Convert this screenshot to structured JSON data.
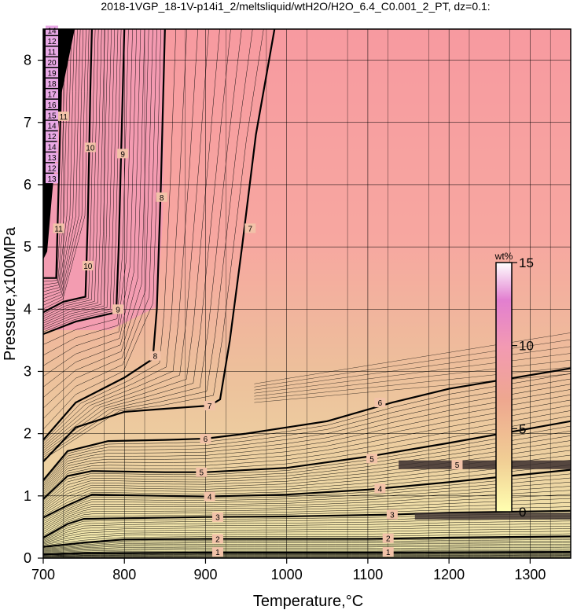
{
  "chart_data": {
    "type": "heatmap",
    "title": "2018-1VGP_18-1V-p14i1_2/meltsliquid/wtH2O/H2O_6.4_C0.001_2_PT, dz=0.1:",
    "xlabel": "Temperature,°C",
    "ylabel": "Pressure,x100MPa",
    "xlim": [
      700,
      1350
    ],
    "ylim": [
      0,
      8.5
    ],
    "xticks": [
      "700",
      "800",
      "900",
      "1000",
      "1100",
      "1200",
      "1300"
    ],
    "yticks": [
      "0",
      "1",
      "2",
      "3",
      "4",
      "5",
      "6",
      "7",
      "8"
    ],
    "grid": true,
    "colorbar": {
      "unit": "wt%",
      "range": [
        0,
        15
      ],
      "ticks": [
        "0",
        "5",
        "10",
        "15"
      ],
      "colors": [
        "#ffffb0",
        "#f1cf95",
        "#eea78f",
        "#f39ab2",
        "#e27fd0",
        "#ffffff"
      ]
    },
    "fill_colors": {
      "low": "#f4eeb0",
      "mid": "#edbf9b",
      "high": "#f7a0a0",
      "top": "#f39ab3"
    },
    "contours": [
      {
        "level": 1,
        "label": "1",
        "points": [
          [
            700,
            0.06
          ],
          [
            750,
            0.08
          ],
          [
            900,
            0.09
          ],
          [
            1000,
            0.09
          ],
          [
            1100,
            0.09
          ],
          [
            1350,
            0.1
          ]
        ]
      },
      {
        "level": 2,
        "label": "2",
        "points": [
          [
            700,
            0.18
          ],
          [
            750,
            0.25
          ],
          [
            800,
            0.3
          ],
          [
            900,
            0.31
          ],
          [
            1000,
            0.31
          ],
          [
            1100,
            0.31
          ],
          [
            1200,
            0.33
          ],
          [
            1350,
            0.35
          ]
        ]
      },
      {
        "level": 3,
        "label": "3",
        "points": [
          [
            700,
            0.33
          ],
          [
            730,
            0.55
          ],
          [
            750,
            0.63
          ],
          [
            900,
            0.66
          ],
          [
            1000,
            0.67
          ],
          [
            1130,
            0.7
          ],
          [
            1200,
            0.73
          ],
          [
            1350,
            0.76
          ]
        ]
      },
      {
        "level": 4,
        "label": "4",
        "points": [
          [
            700,
            0.65
          ],
          [
            730,
            0.85
          ],
          [
            760,
            1.02
          ],
          [
            850,
            1.0
          ],
          [
            900,
            0.99
          ],
          [
            1000,
            1.02
          ],
          [
            1100,
            1.1
          ],
          [
            1200,
            1.22
          ],
          [
            1350,
            1.42
          ]
        ]
      },
      {
        "level": 5,
        "label": "5",
        "points": [
          [
            700,
            0.95
          ],
          [
            730,
            1.32
          ],
          [
            760,
            1.4
          ],
          [
            850,
            1.38
          ],
          [
            900,
            1.38
          ],
          [
            1000,
            1.45
          ],
          [
            1100,
            1.63
          ],
          [
            1200,
            1.85
          ],
          [
            1350,
            2.2
          ]
        ]
      },
      {
        "level": 6,
        "label": "6",
        "points": [
          [
            700,
            1.25
          ],
          [
            730,
            1.72
          ],
          [
            780,
            1.88
          ],
          [
            850,
            1.9
          ],
          [
            900,
            1.92
          ],
          [
            950,
            2.0
          ],
          [
            1050,
            2.2
          ],
          [
            1130,
            2.5
          ],
          [
            1200,
            2.72
          ],
          [
            1350,
            3.05
          ]
        ]
      },
      {
        "level": 7,
        "label": "7",
        "points": [
          [
            700,
            1.55
          ],
          [
            740,
            2.1
          ],
          [
            800,
            2.35
          ],
          [
            850,
            2.4
          ],
          [
            905,
            2.45
          ],
          [
            918,
            2.55
          ],
          [
            930,
            3.5
          ],
          [
            945,
            5.0
          ],
          [
            962,
            6.8
          ],
          [
            985,
            8.5
          ]
        ]
      },
      {
        "level": 8,
        "label": "8",
        "points": [
          [
            700,
            1.9
          ],
          [
            740,
            2.5
          ],
          [
            800,
            2.9
          ],
          [
            835,
            3.2
          ],
          [
            840,
            4.0
          ],
          [
            845,
            6.0
          ],
          [
            850,
            8.5
          ]
        ]
      },
      {
        "level": 9,
        "label": "9",
        "points": [
          [
            700,
            3.6
          ],
          [
            740,
            3.8
          ],
          [
            790,
            3.95
          ],
          [
            793,
            5.0
          ],
          [
            797,
            7.0
          ],
          [
            800,
            8.5
          ]
        ]
      },
      {
        "level": 10,
        "label": "10",
        "points": [
          [
            700,
            3.95
          ],
          [
            725,
            4.12
          ],
          [
            752,
            4.2
          ],
          [
            755,
            5.5
          ],
          [
            758,
            7.5
          ],
          [
            760,
            8.5
          ]
        ]
      },
      {
        "level": 11,
        "label": "11",
        "points": [
          [
            700,
            4.5
          ],
          [
            716,
            4.5
          ],
          [
            718,
            5.5
          ],
          [
            722,
            7.5
          ],
          [
            724,
            8.5
          ]
        ]
      }
    ],
    "contour_labels": [
      {
        "text": "1",
        "x": 915,
        "y": 0.1
      },
      {
        "text": "1",
        "x": 1125,
        "y": 0.1
      },
      {
        "text": "2",
        "x": 915,
        "y": 0.31
      },
      {
        "text": "2",
        "x": 1125,
        "y": 0.32
      },
      {
        "text": "3",
        "x": 915,
        "y": 0.66
      },
      {
        "text": "3",
        "x": 1130,
        "y": 0.7
      },
      {
        "text": "4",
        "x": 905,
        "y": 0.99
      },
      {
        "text": "4",
        "x": 1115,
        "y": 1.12
      },
      {
        "text": "5",
        "x": 895,
        "y": 1.38
      },
      {
        "text": "5",
        "x": 1105,
        "y": 1.6
      },
      {
        "text": "5",
        "x": 1210,
        "y": 1.5
      },
      {
        "text": "6",
        "x": 900,
        "y": 1.92
      },
      {
        "text": "6",
        "x": 1115,
        "y": 2.5
      },
      {
        "text": "7",
        "x": 905,
        "y": 2.45
      },
      {
        "text": "7",
        "x": 955,
        "y": 5.3
      },
      {
        "text": "8",
        "x": 838,
        "y": 3.25
      },
      {
        "text": "8",
        "x": 846,
        "y": 5.8
      },
      {
        "text": "9",
        "x": 792,
        "y": 4.0
      },
      {
        "text": "9",
        "x": 798,
        "y": 6.5
      },
      {
        "text": "10",
        "x": 755,
        "y": 4.7
      },
      {
        "text": "10",
        "x": 758,
        "y": 6.6
      },
      {
        "text": "11",
        "x": 719,
        "y": 5.3
      },
      {
        "text": "11",
        "x": 725,
        "y": 7.1
      }
    ],
    "left_labels": [
      "13",
      "12",
      "13",
      "14",
      "12",
      "14",
      "15",
      "16",
      "17",
      "18",
      "19",
      "20",
      "11",
      "12",
      "14"
    ]
  }
}
